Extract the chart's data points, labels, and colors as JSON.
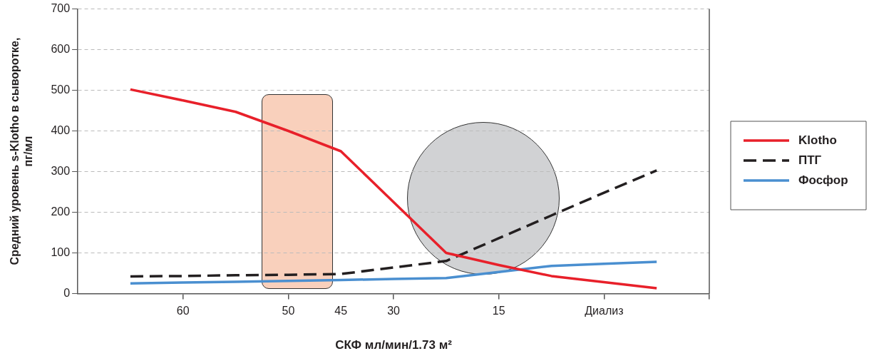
{
  "chart_data": {
    "type": "line",
    "xlabel": "СКФ мл/мин/1.73 м²",
    "ylabel": "Средний уровень s-Klotho в сыворотке,\nпг/мл",
    "categories": [
      null,
      null,
      "60",
      null,
      "50",
      "45",
      "30",
      null,
      "15",
      null,
      "Диализ",
      null,
      null
    ],
    "series": [
      {
        "name": "Klotho",
        "color": "#e8202a",
        "line_style": "solid",
        "values": [
          null,
          502,
          475,
          447,
          400,
          350,
          225,
          100,
          70,
          43,
          28,
          13,
          null
        ]
      },
      {
        "name": "ПТГ",
        "color": "#231f20",
        "line_style": "dashed",
        "values": [
          null,
          42,
          43,
          45,
          46,
          48,
          64,
          80,
          136,
          192,
          248,
          303,
          null
        ]
      },
      {
        "name": "Фосфор",
        "color": "#4a8fd0",
        "line_style": "solid",
        "values": [
          null,
          25,
          27,
          29,
          31,
          33,
          36,
          38,
          53,
          68,
          73,
          78,
          null
        ]
      }
    ],
    "ylim": [
      0,
      700
    ],
    "yticks": [
      0,
      100,
      200,
      300,
      400,
      500,
      600,
      700
    ],
    "grid": "y",
    "legend": "right",
    "marker": "none"
  }
}
